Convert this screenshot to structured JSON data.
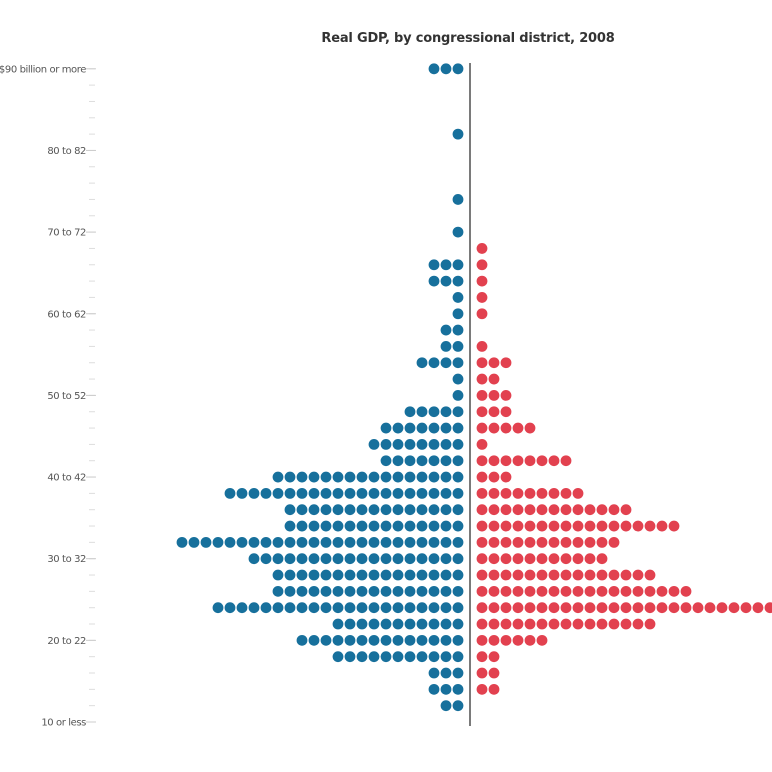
{
  "chart_data": {
    "type": "dot-histogram",
    "title": "Real GDP, by congressional district, 2008",
    "xlabel": "",
    "ylabel": "",
    "grid": false,
    "colors": {
      "left": "#17709c",
      "right": "#e2414f",
      "axis": "#222222"
    },
    "bins_from_bottom": 41,
    "y_tick_labels": [
      {
        "row": 0,
        "label": "10 or less"
      },
      {
        "row": 5,
        "label": "20 to 22"
      },
      {
        "row": 10,
        "label": "30 to 32"
      },
      {
        "row": 15,
        "label": "40 to 42"
      },
      {
        "row": 20,
        "label": "50 to 52"
      },
      {
        "row": 25,
        "label": "60 to 62"
      },
      {
        "row": 30,
        "label": "70 to 72"
      },
      {
        "row": 35,
        "label": "80 to 82"
      },
      {
        "row": 40,
        "label": "$90 billion or more"
      }
    ],
    "series": [
      {
        "side": "left",
        "color": "#17709c",
        "values": [
          0,
          2,
          3,
          3,
          11,
          14,
          11,
          21,
          16,
          16,
          18,
          24,
          15,
          15,
          20,
          16,
          7,
          8,
          7,
          5,
          1,
          1,
          4,
          2,
          2,
          1,
          1,
          3,
          3,
          0,
          1,
          0,
          1,
          0,
          0,
          0,
          1,
          0,
          0,
          0,
          3
        ]
      },
      {
        "side": "right",
        "color": "#e2414f",
        "values": [
          0,
          0,
          2,
          2,
          2,
          6,
          15,
          25,
          18,
          15,
          11,
          12,
          17,
          13,
          9,
          3,
          8,
          1,
          5,
          3,
          3,
          2,
          3,
          1,
          0,
          1,
          1,
          1,
          1,
          1,
          0,
          0,
          0,
          0,
          0,
          0,
          0,
          0,
          0,
          0,
          0
        ]
      }
    ]
  }
}
